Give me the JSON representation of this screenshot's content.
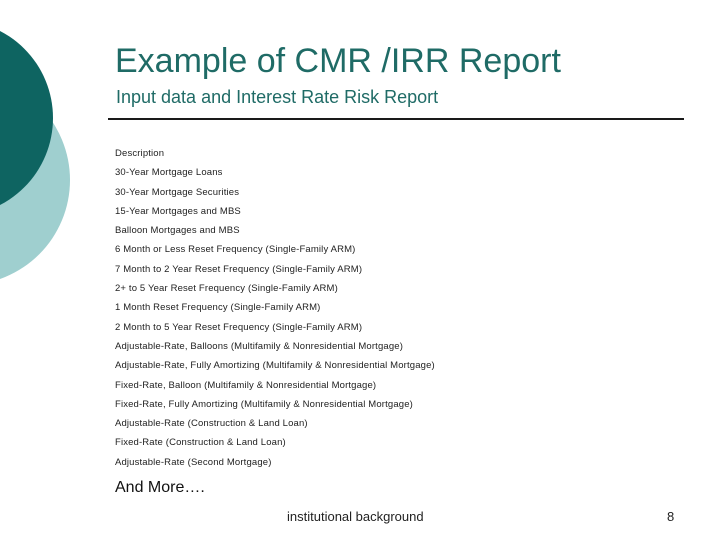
{
  "slide": {
    "title": "Example of CMR /IRR Report",
    "subtitle": "Input data and Interest Rate Risk Report",
    "items": [
      "Description",
      "30-Year Mortgage Loans",
      "30-Year Mortgage Securities",
      "15-Year Mortgages and MBS",
      "Balloon Mortgages and MBS",
      "6 Month or Less Reset Frequency (Single-Family ARM)",
      "7 Month to 2 Year Reset Frequency (Single-Family ARM)",
      "2+ to 5 Year Reset Frequency (Single-Family ARM)",
      "1 Month Reset Frequency (Single-Family ARM)",
      "2 Month to 5 Year Reset Frequency (Single-Family ARM)",
      "Adjustable-Rate, Balloons (Multifamily & Nonresidential Mortgage)",
      "Adjustable-Rate, Fully Amortizing (Multifamily & Nonresidential Mortgage)",
      "Fixed-Rate, Balloon (Multifamily & Nonresidential Mortgage)",
      "Fixed-Rate, Fully Amortizing (Multifamily & Nonresidential Mortgage)",
      "Adjustable-Rate (Construction & Land Loan)",
      "Fixed-Rate (Construction & Land Loan)",
      "Adjustable-Rate (Second Mortgage)"
    ],
    "more": "And More….",
    "footer": "institutional background",
    "page_number": "8"
  },
  "colors": {
    "dark_teal": "#0e6461",
    "light_teal": "#9fcfcf",
    "title": "#1f6b66"
  }
}
